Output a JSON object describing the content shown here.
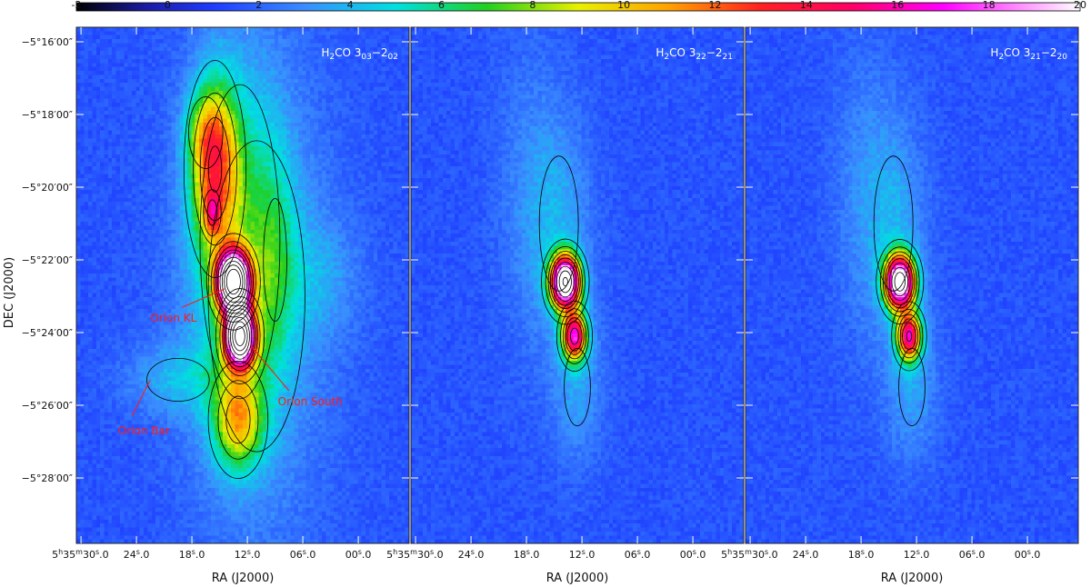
{
  "chart_data": {
    "type": "heatmap",
    "colorbar": {
      "ticks": [
        "-2",
        "0",
        "2",
        "4",
        "6",
        "8",
        "10",
        "12",
        "14",
        "16",
        "18",
        "20"
      ],
      "range": [
        -2,
        20
      ],
      "stops": [
        {
          "v": -2,
          "c": "#000000"
        },
        {
          "v": -0.5,
          "c": "#1a1aa0"
        },
        {
          "v": 1,
          "c": "#1e3cff"
        },
        {
          "v": 3,
          "c": "#3a8cff"
        },
        {
          "v": 5,
          "c": "#00e0e0"
        },
        {
          "v": 7,
          "c": "#20d020"
        },
        {
          "v": 9,
          "c": "#e8f000"
        },
        {
          "v": 11,
          "c": "#ffa000"
        },
        {
          "v": 13,
          "c": "#ff2020"
        },
        {
          "v": 15,
          "c": "#ff0066"
        },
        {
          "v": 17,
          "c": "#ff00ff"
        },
        {
          "v": 20,
          "c": "#ffffff"
        }
      ]
    },
    "ylabel": "DEC (J2000)",
    "y_ticks": [
      "−5°16′00″",
      "−5°18′00″",
      "−5°20′00″",
      "−5°22′00″",
      "−5°24′00″",
      "−5°26′00″",
      "−5°28′00″"
    ],
    "y_tick_values": [
      -316,
      -318,
      -320,
      -322,
      -324,
      -326,
      -328
    ],
    "ylim": [
      -329.8,
      -315.6
    ],
    "xlim": [
      30.5,
      -5.5
    ],
    "panels": [
      {
        "title_base": "H",
        "title_sub1": "2",
        "title_mid": "CO 3",
        "title_sub2": "03",
        "title_mid2": "−2",
        "title_sub3": "02",
        "xlabel": "RA (J2000)",
        "x_ticks": [
          {
            "value": 30,
            "h": "5",
            "m": "35",
            "sec": "30",
            "frac": "0"
          },
          {
            "value": 24,
            "label": "24",
            "frac": "0"
          },
          {
            "value": 18,
            "label": "18",
            "frac": "0"
          },
          {
            "value": 12,
            "label": "12",
            "frac": "0"
          },
          {
            "value": 6,
            "label": "06",
            "frac": "0"
          },
          {
            "value": 0,
            "label": "00",
            "frac": "0"
          }
        ],
        "components": [
          {
            "x": 13.5,
            "y": -322.6,
            "sx": 1.2,
            "sy": 0.55,
            "amp": 26
          },
          {
            "x": 12.8,
            "y": -324.1,
            "sx": 1.1,
            "sy": 0.55,
            "amp": 24
          },
          {
            "x": 15.5,
            "y": -319.5,
            "sx": 1.8,
            "sy": 1.6,
            "amp": 8
          },
          {
            "x": 16.5,
            "y": -318.5,
            "sx": 1.5,
            "sy": 0.8,
            "amp": 3
          },
          {
            "x": 15.8,
            "y": -320.7,
            "sx": 0.6,
            "sy": 0.4,
            "amp": 5
          },
          {
            "x": 12.8,
            "y": -321.5,
            "sx": 3.5,
            "sy": 3.5,
            "amp": 3
          },
          {
            "x": 13.0,
            "y": -326.4,
            "sx": 1.8,
            "sy": 0.9,
            "amp": 7
          },
          {
            "x": 11.0,
            "y": -323.0,
            "sx": 5.5,
            "sy": 4.5,
            "amp": 2.2
          },
          {
            "x": 19.5,
            "y": -325.3,
            "sx": 4.0,
            "sy": 0.7,
            "amp": 2.0
          },
          {
            "x": 9.0,
            "y": -322.0,
            "sx": 1.5,
            "sy": 2.0,
            "amp": 2.0
          },
          {
            "x": 4.0,
            "y": -322.5,
            "sx": 3.0,
            "sy": 1.2,
            "amp": 1.3
          }
        ],
        "annotations": [
          {
            "text": "Orion KL",
            "ra": 22.5,
            "dec": -323.7
          },
          {
            "text": "Orion South",
            "ra": 8.7,
            "dec": -326.0
          },
          {
            "text": "Orion Bar",
            "ra": 26.0,
            "dec": -326.8
          }
        ]
      },
      {
        "title_base": "H",
        "title_sub1": "2",
        "title_mid": "CO 3",
        "title_sub2": "22",
        "title_mid2": "−2",
        "title_sub3": "21",
        "xlabel": "RA (J2000)",
        "x_ticks": [
          {
            "value": 30,
            "h": "5",
            "m": "35",
            "sec": "30",
            "frac": "0"
          },
          {
            "value": 24,
            "label": "24",
            "frac": "0"
          },
          {
            "value": 18,
            "label": "18",
            "frac": "0"
          },
          {
            "value": 12,
            "label": "12",
            "frac": "0"
          },
          {
            "value": 6,
            "label": "06",
            "frac": "0"
          },
          {
            "value": 0,
            "label": "00",
            "frac": "0"
          }
        ],
        "components": [
          {
            "x": 13.8,
            "y": -322.6,
            "sx": 1.1,
            "sy": 0.5,
            "amp": 22
          },
          {
            "x": 12.8,
            "y": -324.1,
            "sx": 0.9,
            "sy": 0.45,
            "amp": 14
          },
          {
            "x": 14.5,
            "y": -321.0,
            "sx": 2.5,
            "sy": 2.2,
            "amp": 2.0
          },
          {
            "x": 12.5,
            "y": -325.5,
            "sx": 2.0,
            "sy": 1.5,
            "amp": 1.8
          },
          {
            "x": 18.0,
            "y": -320.0,
            "sx": 2.5,
            "sy": 3.0,
            "amp": 1.0
          }
        ]
      },
      {
        "title_base": "H",
        "title_sub1": "2",
        "title_mid": "CO 3",
        "title_sub2": "21",
        "title_mid2": "−2",
        "title_sub3": "20",
        "xlabel": "RA (J2000)",
        "x_ticks": [
          {
            "value": 30,
            "h": "5",
            "m": "35",
            "sec": "30",
            "frac": "0"
          },
          {
            "value": 24,
            "label": "24",
            "frac": "0"
          },
          {
            "value": 18,
            "label": "18",
            "frac": "0"
          },
          {
            "value": 12,
            "label": "12",
            "frac": "0"
          },
          {
            "value": 6,
            "label": "06",
            "frac": "0"
          },
          {
            "value": 0,
            "label": "00",
            "frac": "0"
          }
        ],
        "components": [
          {
            "x": 13.8,
            "y": -322.6,
            "sx": 1.1,
            "sy": 0.5,
            "amp": 21
          },
          {
            "x": 12.8,
            "y": -324.1,
            "sx": 0.9,
            "sy": 0.45,
            "amp": 13
          },
          {
            "x": 14.5,
            "y": -321.0,
            "sx": 2.5,
            "sy": 2.2,
            "amp": 2.0
          },
          {
            "x": 12.5,
            "y": -325.5,
            "sx": 2.0,
            "sy": 1.5,
            "amp": 1.8
          },
          {
            "x": 18.0,
            "y": -320.0,
            "sx": 2.5,
            "sy": 3.0,
            "amp": 1.0
          }
        ]
      }
    ]
  }
}
